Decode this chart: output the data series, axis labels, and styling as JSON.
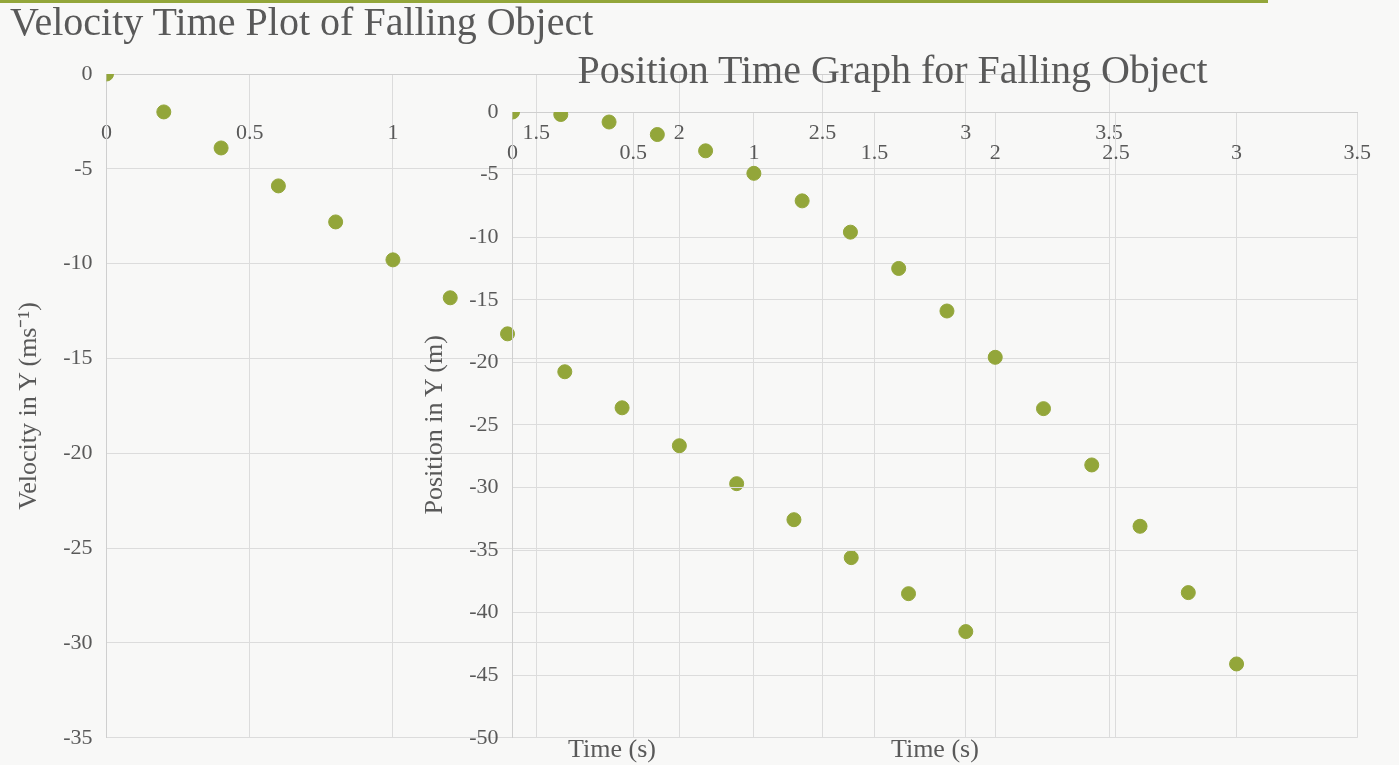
{
  "chart_data": [
    {
      "type": "scatter",
      "title": "Velocity Time Plot of Falling Object",
      "xlabel": "Time (s)",
      "ylabel": "Velocity in Y (ms⁻¹)",
      "color": "#93a63a",
      "marker": "circle",
      "grid": true,
      "x": [
        0,
        0.2,
        0.4,
        0.6,
        0.8,
        1,
        1.2,
        1.4,
        1.6,
        1.8,
        2,
        2.2,
        2.4,
        2.6,
        2.8,
        3
      ],
      "values": [
        0,
        -2,
        -3.9,
        -5.9,
        -7.8,
        -9.8,
        -11.8,
        -13.7,
        -15.7,
        -17.6,
        -19.6,
        -21.6,
        -23.5,
        -25.5,
        -27.4,
        -29.4
      ],
      "xlim": [
        0,
        3.5
      ],
      "xticks": [
        0,
        0.5,
        1,
        1.5,
        2,
        2.5,
        3,
        3.5
      ],
      "ylim": [
        -35,
        0
      ],
      "yticks": [
        -35,
        -30,
        -25,
        -20,
        -15,
        -10,
        -5,
        0
      ]
    },
    {
      "type": "scatter",
      "title": "Position Time Graph for Falling Object",
      "xlabel": "Time (s)",
      "ylabel": "Position in Y (m)",
      "color": "#93a63a",
      "marker": "circle",
      "grid": true,
      "x": [
        0,
        0.2,
        0.4,
        0.6,
        0.8,
        1,
        1.2,
        1.4,
        1.6,
        1.8,
        2,
        2.2,
        2.4,
        2.6,
        2.8,
        3
      ],
      "values": [
        0,
        -0.2,
        -0.8,
        -1.8,
        -3.1,
        -4.9,
        -7.1,
        -9.6,
        -12.5,
        -15.9,
        -19.6,
        -23.7,
        -28.2,
        -33.1,
        -38.4,
        -44.1
      ],
      "xlim": [
        0,
        3.5
      ],
      "xticks": [
        0,
        0.5,
        1,
        1.5,
        2,
        2.5,
        3,
        3.5
      ],
      "ylim": [
        -50,
        0
      ],
      "yticks": [
        -50,
        -45,
        -40,
        -35,
        -30,
        -25,
        -20,
        -15,
        -10,
        -5,
        0
      ]
    }
  ]
}
